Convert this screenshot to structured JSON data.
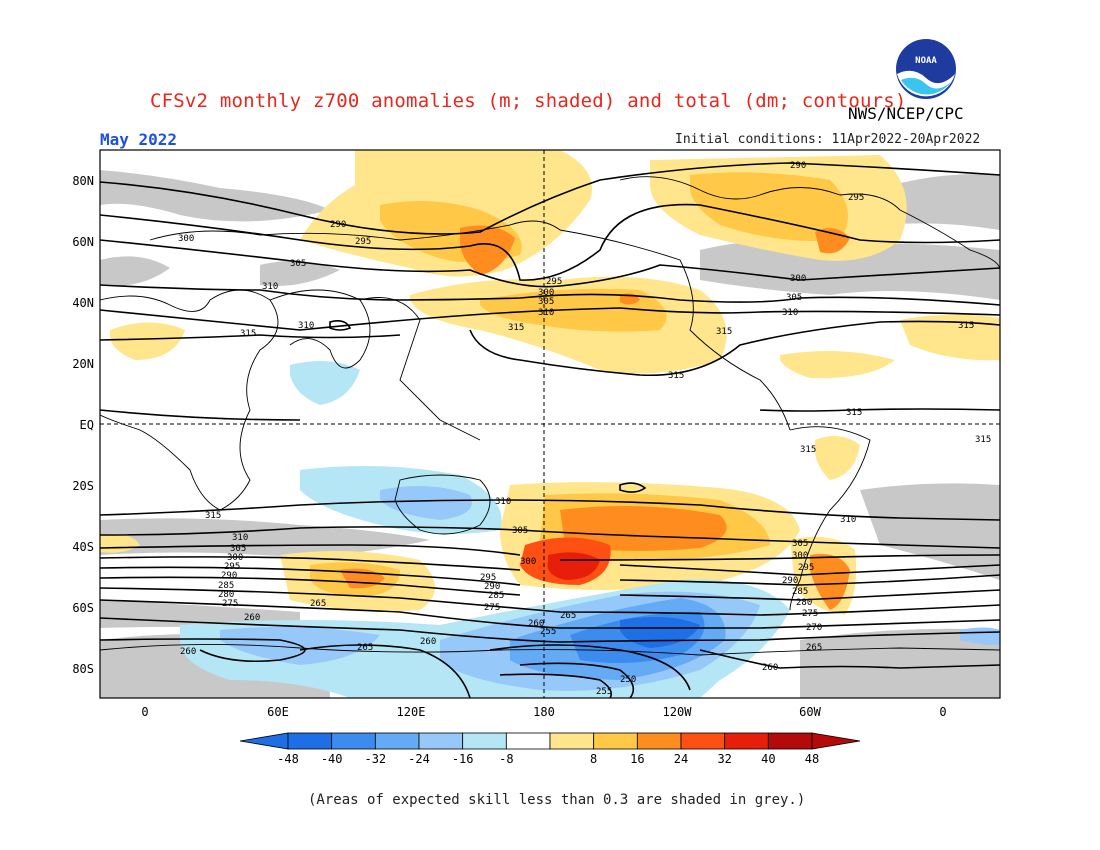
{
  "title": "CFSv2 monthly z700 anomalies (m; shaded) and total (dm; contours)",
  "agency": "NWS/NCEP/CPC",
  "month": "May 2022",
  "initial_conditions": "Initial conditions: 11Apr2022-20Apr2022",
  "footer_note": "(Areas of expected skill less than 0.3 are shaded in grey.)",
  "logo": {
    "text": "NOAA",
    "icon": "noaa-logo-icon"
  },
  "map": {
    "lat_labels": [
      "80N",
      "60N",
      "40N",
      "20N",
      "EQ",
      "20S",
      "40S",
      "60S",
      "80S"
    ],
    "lon_labels": [
      "0",
      "60E",
      "120E",
      "180",
      "120W",
      "60W",
      "0"
    ],
    "contour_labels": [
      "290",
      "295",
      "300",
      "305",
      "310",
      "315",
      "280",
      "285",
      "275",
      "270",
      "265",
      "260",
      "255",
      "250"
    ]
  },
  "colorbar": {
    "ticks": [
      "-48",
      "-40",
      "-32",
      "-24",
      "-16",
      "-8",
      "8",
      "16",
      "24",
      "32",
      "40",
      "48"
    ],
    "colors": [
      "#1e6ee6",
      "#3c8cf0",
      "#64aaf5",
      "#96c8fa",
      "#b4e6f5",
      "#ffffff",
      "#ffe68c",
      "#ffc846",
      "#ff8c1e",
      "#ff5014",
      "#e61e0a",
      "#b40a0a"
    ],
    "grey": "#c8c8c8"
  }
}
